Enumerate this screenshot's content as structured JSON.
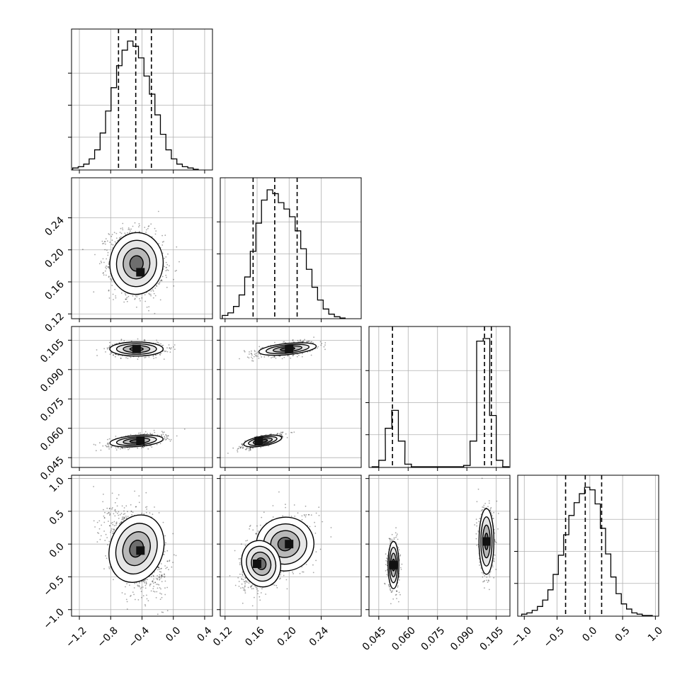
{
  "chart_data": {
    "type": "corner",
    "title": "",
    "grid": true,
    "parameters": [
      {
        "id": "p0",
        "label": "",
        "range": [
          -1.3,
          0.5
        ],
        "quantiles": [
          -0.7,
          -0.48,
          -0.28
        ],
        "ticks": [
          "-1.2",
          "-0.8",
          "-0.4",
          "0.0",
          "0.4"
        ],
        "hist_centers": [
          -1.25,
          -1.18,
          -1.11,
          -1.04,
          -0.97,
          -0.9,
          -0.83,
          -0.76,
          -0.69,
          -0.62,
          -0.55,
          -0.48,
          -0.41,
          -0.34,
          -0.27,
          -0.2,
          -0.13,
          -0.06,
          0.01,
          0.08,
          0.15,
          0.22,
          0.29
        ],
        "hist_counts": [
          1,
          2,
          4,
          8,
          15,
          28,
          45,
          63,
          80,
          92,
          99,
          95,
          86,
          72,
          58,
          42,
          27,
          15,
          8,
          4,
          2,
          1,
          0
        ]
      },
      {
        "id": "p1",
        "label": "",
        "range": [
          0.114,
          0.29
        ],
        "quantiles": [
          0.155,
          0.182,
          0.21
        ],
        "ticks": [
          "0.12",
          "0.16",
          "0.20",
          "0.24"
        ],
        "hist_centers": [
          0.12,
          0.127,
          0.134,
          0.141,
          0.148,
          0.155,
          0.162,
          0.169,
          0.176,
          0.183,
          0.19,
          0.197,
          0.204,
          0.211,
          0.218,
          0.225,
          0.232,
          0.239,
          0.246,
          0.253,
          0.26,
          0.267
        ],
        "hist_counts": [
          2,
          4,
          9,
          18,
          32,
          52,
          74,
          92,
          100,
          97,
          90,
          85,
          79,
          68,
          54,
          38,
          24,
          14,
          7,
          3,
          1,
          0
        ]
      },
      {
        "id": "p2",
        "label": "",
        "range": [
          0.04,
          0.112
        ],
        "quantiles": [
          0.052,
          0.099,
          0.1025
        ],
        "ticks": [
          "0.045",
          "0.060",
          "0.075",
          "0.090",
          "0.105"
        ],
        "hist_centers": [
          0.0433,
          0.0467,
          0.05,
          0.0533,
          0.0567,
          0.06,
          0.0633,
          0.0667,
          0.07,
          0.0733,
          0.0767,
          0.08,
          0.0833,
          0.0867,
          0.09,
          0.0933,
          0.0967,
          0.1,
          0.1033,
          0.1067,
          0.11
        ],
        "hist_counts": [
          0,
          5,
          30,
          44,
          20,
          2,
          0,
          0,
          0,
          0,
          0,
          0,
          0,
          0,
          1,
          20,
          98,
          100,
          40,
          5,
          0
        ]
      },
      {
        "id": "p3",
        "label": "",
        "range": [
          -1.1,
          1.05
        ],
        "quantiles": [
          -0.37,
          -0.07,
          0.18
        ],
        "ticks": [
          "-1.0",
          "-0.5",
          "0.0",
          "0.5",
          "1.0"
        ],
        "hist_centers": [
          -1.0,
          -0.92,
          -0.84,
          -0.76,
          -0.68,
          -0.6,
          -0.52,
          -0.44,
          -0.36,
          -0.28,
          -0.2,
          -0.12,
          -0.04,
          0.04,
          0.12,
          0.2,
          0.28,
          0.36,
          0.44,
          0.52,
          0.6,
          0.68,
          0.76,
          0.84,
          0.92
        ],
        "hist_counts": [
          1,
          2,
          4,
          7,
          12,
          20,
          32,
          47,
          63,
          78,
          88,
          95,
          100,
          98,
          87,
          68,
          48,
          30,
          17,
          9,
          5,
          2,
          1,
          0,
          0
        ]
      }
    ],
    "pairs": [
      {
        "x": "p0",
        "y": "p1",
        "blobs": [
          {
            "cx": -0.47,
            "cy": 0.183,
            "sx": 0.17,
            "sy": 0.02,
            "rho": -0.1,
            "peak": [
              -0.42,
              0.172
            ]
          }
        ]
      },
      {
        "x": "p0",
        "y": "p2",
        "blobs": [
          {
            "cx": -0.47,
            "cy": 0.1005,
            "sx": 0.17,
            "sy": 0.0018,
            "rho": 0.0,
            "peak": [
              -0.47,
              0.1005
            ]
          },
          {
            "cx": -0.47,
            "cy": 0.0535,
            "sx": 0.17,
            "sy": 0.0017,
            "rho": 0.45,
            "peak": [
              -0.42,
              0.0535
            ]
          }
        ]
      },
      {
        "x": "p1",
        "y": "p2",
        "blobs": [
          {
            "cx": 0.198,
            "cy": 0.1005,
            "sx": 0.018,
            "sy": 0.0018,
            "rho": 0.6,
            "peak": [
              0.2,
              0.1005
            ]
          },
          {
            "cx": 0.167,
            "cy": 0.0535,
            "sx": 0.012,
            "sy": 0.0017,
            "rho": 0.75,
            "peak": [
              0.162,
              0.0535
            ]
          }
        ]
      },
      {
        "x": "p0",
        "y": "p3",
        "blobs": [
          {
            "cx": -0.47,
            "cy": -0.07,
            "sx": 0.17,
            "sy": 0.3,
            "rho": -0.35,
            "peak": [
              -0.42,
              -0.1
            ]
          }
        ]
      },
      {
        "x": "p1",
        "y": "p3",
        "blobs": [
          {
            "cx": 0.195,
            "cy": 0.0,
            "sx": 0.018,
            "sy": 0.22,
            "rho": 0.2,
            "peak": [
              0.2,
              0.0
            ]
          },
          {
            "cx": 0.165,
            "cy": -0.3,
            "sx": 0.012,
            "sy": 0.2,
            "rho": 0.3,
            "peak": [
              0.16,
              -0.3
            ]
          }
        ]
      },
      {
        "x": "p2",
        "y": "p3",
        "blobs": [
          {
            "cx": 0.0525,
            "cy": -0.32,
            "sx": 0.0014,
            "sy": 0.18,
            "rho": 0.0,
            "peak": [
              0.0525,
              -0.32
            ]
          },
          {
            "cx": 0.1,
            "cy": 0.04,
            "sx": 0.0019,
            "sy": 0.25,
            "rho": 0.0,
            "peak": [
              0.1,
              0.04
            ]
          }
        ]
      }
    ]
  }
}
